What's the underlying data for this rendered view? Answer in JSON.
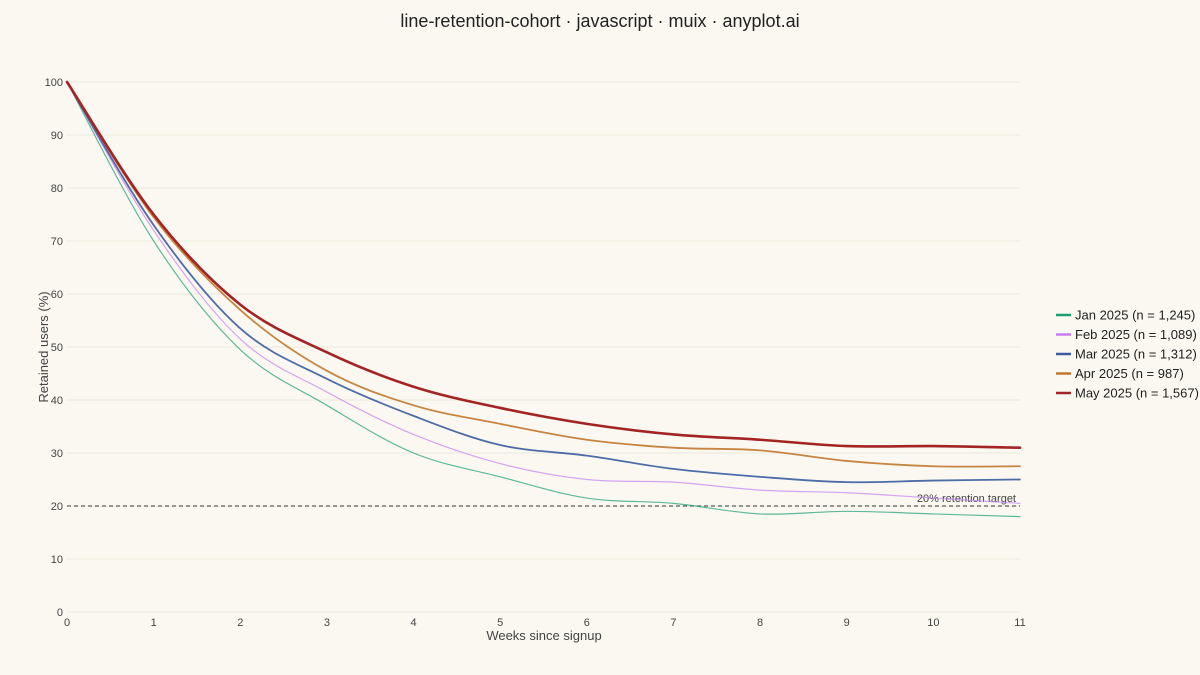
{
  "chart_data": {
    "type": "line",
    "title": "line-retention-cohort · javascript · muix · anyplot.ai",
    "xlabel": "Weeks since signup",
    "ylabel": "Retained users (%)",
    "xlim": [
      0,
      11
    ],
    "ylim": [
      0,
      100
    ],
    "x_ticks": [
      0,
      1,
      2,
      3,
      4,
      5,
      6,
      7,
      8,
      9,
      10,
      11
    ],
    "y_ticks": [
      0,
      10,
      20,
      30,
      40,
      50,
      60,
      70,
      80,
      90,
      100
    ],
    "grid": "horizontal",
    "legend_position": "right",
    "x": [
      0,
      1,
      2,
      3,
      4,
      5,
      6,
      7,
      8,
      9,
      10,
      11
    ],
    "series": [
      {
        "name": "Jan 2025 (n = 1,245)",
        "color": "#1A9E74",
        "line_weight": "thin",
        "values": [
          100,
          70,
          49.5,
          39,
          30,
          25.5,
          21.5,
          20.5,
          18.5,
          19,
          18.5,
          18
        ]
      },
      {
        "name": "Feb 2025 (n = 1,089)",
        "color": "#C77DF2",
        "line_weight": "thin",
        "values": [
          100,
          72,
          51.5,
          41.5,
          33.5,
          28,
          25,
          24.5,
          23,
          22.5,
          21.5,
          20.5
        ]
      },
      {
        "name": "Mar 2025 (n = 1,312)",
        "color": "#3B5C9E",
        "line_weight": "medium",
        "values": [
          100,
          73,
          53.5,
          44,
          37,
          31.5,
          29.5,
          27,
          25.5,
          24.5,
          24.8,
          25
        ]
      },
      {
        "name": "Apr 2025 (n = 987)",
        "color": "#C0782E",
        "line_weight": "medium",
        "values": [
          100,
          74.5,
          57,
          45.5,
          39,
          35.5,
          32.5,
          31,
          30.5,
          28.5,
          27.5,
          27.5
        ]
      },
      {
        "name": "May 2025 (n = 1,567)",
        "color": "#A42424",
        "line_weight": "thick",
        "values": [
          100,
          75,
          58,
          49,
          42.5,
          38.5,
          35.5,
          33.5,
          32.5,
          31.3,
          31.3,
          31
        ]
      }
    ],
    "reference_line": {
      "y": 20,
      "label": "20% retention target",
      "style": "dashed",
      "color": "#333333"
    }
  }
}
